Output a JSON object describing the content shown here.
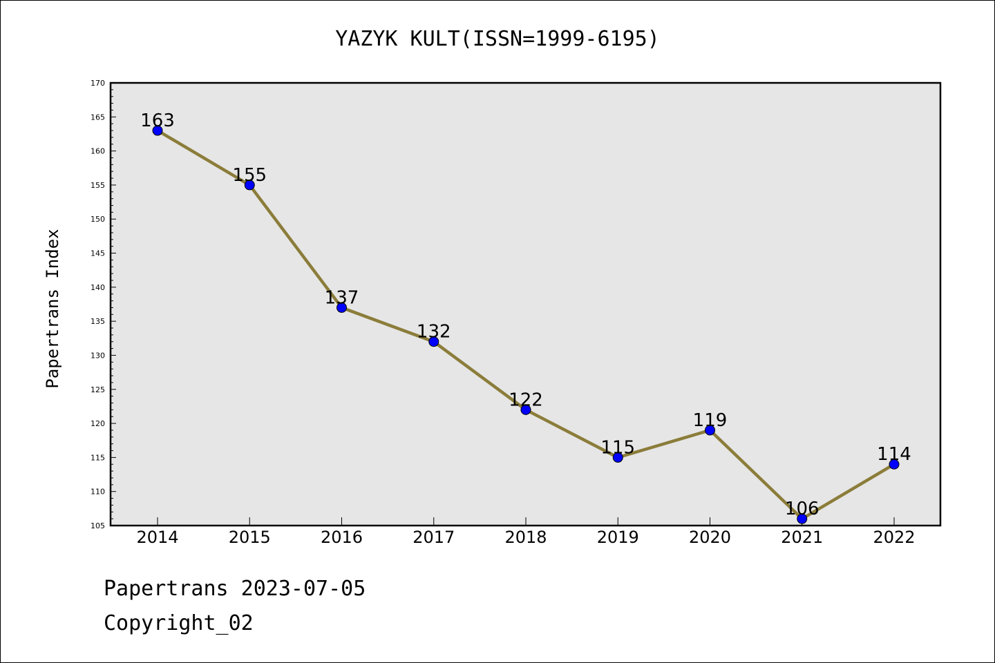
{
  "chart_data": {
    "type": "line",
    "title": "YAZYK KULT(ISSN=1999-6195)",
    "xlabel": "",
    "ylabel": "Papertrans Index",
    "x": [
      2014,
      2015,
      2016,
      2017,
      2018,
      2019,
      2020,
      2021,
      2022
    ],
    "series": [
      {
        "values": [
          163,
          155,
          137,
          132,
          122,
          115,
          119,
          106,
          114
        ]
      }
    ],
    "ylim": [
      105,
      170
    ],
    "yticks": [
      105,
      110,
      115,
      120,
      125,
      130,
      135,
      140,
      145,
      150,
      155,
      160,
      165,
      170
    ],
    "grid": false,
    "data_labels": true,
    "colors": {
      "line": "#8b7d3a",
      "marker": "#0000ff",
      "plot_background": "#e6e6e6"
    }
  },
  "footer": {
    "line1": "Papertrans 2023-07-05",
    "line2": "Copyright_02"
  }
}
